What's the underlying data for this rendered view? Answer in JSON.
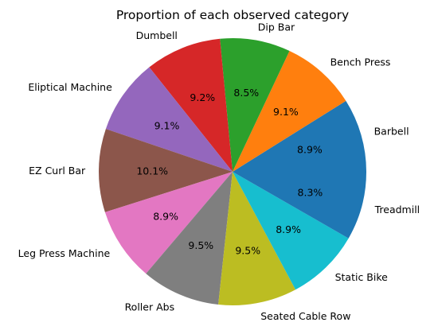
{
  "chart_data": {
    "type": "pie",
    "title": "Proportion of each observed category",
    "slices": [
      {
        "label": "Barbell",
        "value": 8.9,
        "pct_label": "8.9%",
        "color": "#1f77b4"
      },
      {
        "label": "Bench Press",
        "value": 9.1,
        "pct_label": "9.1%",
        "color": "#ff7f0e"
      },
      {
        "label": "Dip Bar",
        "value": 8.5,
        "pct_label": "8.5%",
        "color": "#2ca02c"
      },
      {
        "label": "Dumbell",
        "value": 9.2,
        "pct_label": "9.2%",
        "color": "#d62728"
      },
      {
        "label": "Eliptical Machine",
        "value": 9.1,
        "pct_label": "9.1%",
        "color": "#9467bd"
      },
      {
        "label": "EZ Curl Bar",
        "value": 10.1,
        "pct_label": "10.1%",
        "color": "#8c564b"
      },
      {
        "label": "Leg Press Machine",
        "value": 8.9,
        "pct_label": "8.9%",
        "color": "#e377c2"
      },
      {
        "label": "Roller Abs",
        "value": 9.5,
        "pct_label": "9.5%",
        "color": "#7f7f7f"
      },
      {
        "label": "Seated Cable Row",
        "value": 9.5,
        "pct_label": "9.5%",
        "color": "#bcbd22"
      },
      {
        "label": "Static Bike",
        "value": 8.9,
        "pct_label": "8.9%",
        "color": "#17becf"
      },
      {
        "label": "Treadmill",
        "value": 8.3,
        "pct_label": "8.3%",
        "color": "#1f77b4"
      }
    ],
    "start_angle_deg": 0,
    "direction": "counterclockwise",
    "legend": "none"
  }
}
